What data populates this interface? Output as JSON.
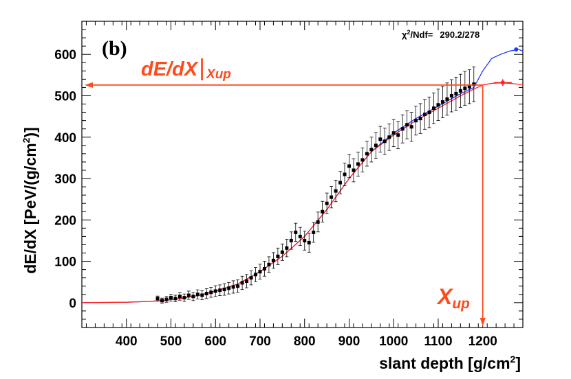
{
  "chart_data": {
    "type": "scatter",
    "panel_label": "(b)",
    "xlabel": "slant depth [g/cm",
    "xlabel_sup": "2",
    "xlabel_end": "]",
    "ylabel": "dE/dX [PeV/(g/cm",
    "ylabel_sup": "2",
    "ylabel_end": ")]",
    "xlim": [
      300,
      1290
    ],
    "ylim": [
      -60,
      680
    ],
    "x_ticks": [
      400,
      500,
      600,
      700,
      800,
      900,
      1000,
      1100,
      1200
    ],
    "y_ticks": [
      0,
      100,
      200,
      300,
      400,
      500,
      600
    ],
    "x_tick_labels": [
      "400",
      "500",
      "600",
      "700",
      "800",
      "900",
      "1000",
      "1100",
      "1200"
    ],
    "y_tick_labels": [
      "0",
      "100",
      "200",
      "300",
      "400",
      "500",
      "600"
    ],
    "stats": {
      "chi_prefix": "χ",
      "chi_sup": "2",
      "chi_suffix": "/Ndf=",
      "value": "290.2/278"
    },
    "series": [
      {
        "name": "data points",
        "color": "#000000",
        "x": [
          470,
          480,
          490,
          500,
          510,
          520,
          530,
          540,
          550,
          560,
          570,
          580,
          590,
          600,
          610,
          620,
          630,
          640,
          650,
          660,
          670,
          680,
          690,
          700,
          710,
          720,
          730,
          740,
          750,
          760,
          770,
          780,
          790,
          800,
          810,
          820,
          830,
          840,
          850,
          860,
          870,
          880,
          890,
          900,
          910,
          920,
          930,
          940,
          950,
          960,
          970,
          980,
          990,
          1000,
          1010,
          1020,
          1030,
          1040,
          1050,
          1060,
          1070,
          1080,
          1090,
          1100,
          1110,
          1120,
          1130,
          1140,
          1150,
          1160,
          1170,
          1180
        ],
        "y": [
          10,
          5,
          8,
          12,
          10,
          15,
          12,
          18,
          15,
          20,
          18,
          22,
          25,
          28,
          30,
          32,
          35,
          38,
          40,
          48,
          52,
          60,
          68,
          75,
          82,
          92,
          102,
          112,
          122,
          132,
          150,
          170,
          160,
          150,
          145,
          170,
          195,
          220,
          240,
          255,
          270,
          290,
          310,
          330,
          320,
          335,
          345,
          360,
          370,
          380,
          395,
          390,
          400,
          410,
          405,
          420,
          430,
          425,
          440,
          445,
          455,
          460,
          470,
          478,
          485,
          492,
          500,
          505,
          512,
          518,
          522,
          528
        ],
        "yerr": [
          6,
          6,
          7,
          8,
          8,
          9,
          9,
          10,
          10,
          11,
          11,
          12,
          12,
          13,
          13,
          14,
          14,
          15,
          15,
          16,
          16,
          17,
          17,
          18,
          18,
          19,
          19,
          20,
          20,
          21,
          21,
          22,
          22,
          23,
          23,
          24,
          24,
          25,
          25,
          26,
          26,
          27,
          27,
          28,
          28,
          29,
          29,
          30,
          30,
          31,
          31,
          32,
          32,
          33,
          33,
          34,
          34,
          35,
          35,
          36,
          36,
          37,
          37,
          38,
          38,
          39,
          39,
          40,
          40,
          41,
          41,
          42
        ]
      },
      {
        "name": "blue fit",
        "color": "#1f36ff",
        "x": [
          300,
          400,
          450,
          480,
          520,
          560,
          600,
          650,
          700,
          750,
          800,
          850,
          900,
          950,
          1000,
          1050,
          1100,
          1150,
          1180,
          1200,
          1220,
          1240,
          1260,
          1280,
          1290
        ],
        "y": [
          0,
          1,
          3,
          5,
          10,
          17,
          28,
          45,
          75,
          112,
          160,
          225,
          300,
          365,
          410,
          445,
          475,
          505,
          520,
          560,
          590,
          600,
          608,
          612,
          608
        ]
      },
      {
        "name": "red fit",
        "color": "#ff2020",
        "x": [
          300,
          400,
          450,
          480,
          520,
          560,
          600,
          650,
          700,
          750,
          800,
          850,
          900,
          950,
          1000,
          1050,
          1100,
          1150,
          1180,
          1200,
          1220,
          1240,
          1260,
          1280,
          1290
        ],
        "y": [
          0,
          1,
          3,
          5,
          10,
          17,
          28,
          45,
          75,
          112,
          160,
          225,
          300,
          365,
          405,
          440,
          470,
          500,
          516,
          526,
          530,
          531,
          530,
          528,
          527
        ]
      }
    ],
    "extra_points": [
      {
        "name": "red endpoint",
        "x": 1245,
        "y": 532,
        "xerr": 20,
        "yerr": 8,
        "color": "#ff2020"
      },
      {
        "name": "blue endpoint",
        "x": 1275,
        "y": 612,
        "color": "#1f36ff"
      }
    ],
    "annotations": {
      "dedx_label_main": "dE/dX",
      "dedx_label_bar": "|",
      "dedx_label_sub": "Xup",
      "dedx_level": 526,
      "xup_label_main": "X",
      "xup_label_sub": "up",
      "xup_value": 1200,
      "color": "#ff4a1c"
    }
  }
}
